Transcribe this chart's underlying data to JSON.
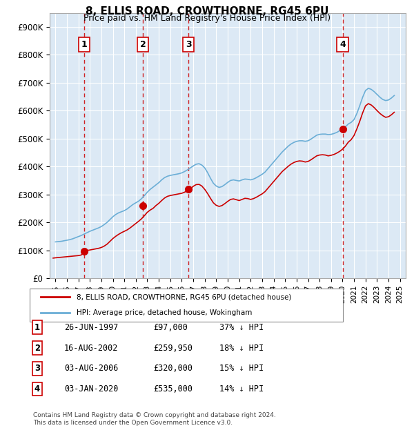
{
  "title": "8, ELLIS ROAD, CROWTHORNE, RG45 6PU",
  "subtitle": "Price paid vs. HM Land Registry's House Price Index (HPI)",
  "background_color": "#dce9f5",
  "plot_bg_color": "#dce9f5",
  "ylabel_color": "#000000",
  "grid_color": "#ffffff",
  "ylim": [
    0,
    950000
  ],
  "yticks": [
    0,
    100000,
    200000,
    300000,
    400000,
    500000,
    600000,
    700000,
    800000,
    900000
  ],
  "ytick_labels": [
    "£0",
    "£100K",
    "£200K",
    "£300K",
    "£400K",
    "£500K",
    "£600K",
    "£700K",
    "£800K",
    "£900K"
  ],
  "xlim_start": 1994.5,
  "xlim_end": 2025.5,
  "sale_dates": [
    1997.49,
    2002.62,
    2006.59,
    2020.01
  ],
  "sale_prices": [
    97000,
    259950,
    320000,
    535000
  ],
  "sale_labels": [
    "1",
    "2",
    "3",
    "4"
  ],
  "hpi_line_color": "#6baed6",
  "price_line_color": "#cc0000",
  "sale_marker_color": "#cc0000",
  "dashed_line_color": "#cc0000",
  "legend_entries": [
    "8, ELLIS ROAD, CROWTHORNE, RG45 6PU (detached house)",
    "HPI: Average price, detached house, Wokingham"
  ],
  "table_rows": [
    [
      "1",
      "26-JUN-1997",
      "£97,000",
      "37% ↓ HPI"
    ],
    [
      "2",
      "16-AUG-2002",
      "£259,950",
      "18% ↓ HPI"
    ],
    [
      "3",
      "03-AUG-2006",
      "£320,000",
      "15% ↓ HPI"
    ],
    [
      "4",
      "03-JAN-2020",
      "£535,000",
      "14% ↓ HPI"
    ]
  ],
  "footnote": "Contains HM Land Registry data © Crown copyright and database right 2024.\nThis data is licensed under the Open Government Licence v3.0.",
  "hpi_years": [
    1995.0,
    1995.25,
    1995.5,
    1995.75,
    1996.0,
    1996.25,
    1996.5,
    1996.75,
    1997.0,
    1997.25,
    1997.5,
    1997.75,
    1998.0,
    1998.25,
    1998.5,
    1998.75,
    1999.0,
    1999.25,
    1999.5,
    1999.75,
    2000.0,
    2000.25,
    2000.5,
    2000.75,
    2001.0,
    2001.25,
    2001.5,
    2001.75,
    2002.0,
    2002.25,
    2002.5,
    2002.75,
    2003.0,
    2003.25,
    2003.5,
    2003.75,
    2004.0,
    2004.25,
    2004.5,
    2004.75,
    2005.0,
    2005.25,
    2005.5,
    2005.75,
    2006.0,
    2006.25,
    2006.5,
    2006.75,
    2007.0,
    2007.25,
    2007.5,
    2007.75,
    2008.0,
    2008.25,
    2008.5,
    2008.75,
    2009.0,
    2009.25,
    2009.5,
    2009.75,
    2010.0,
    2010.25,
    2010.5,
    2010.75,
    2011.0,
    2011.25,
    2011.5,
    2011.75,
    2012.0,
    2012.25,
    2012.5,
    2012.75,
    2013.0,
    2013.25,
    2013.5,
    2013.75,
    2014.0,
    2014.25,
    2014.5,
    2014.75,
    2015.0,
    2015.25,
    2015.5,
    2015.75,
    2016.0,
    2016.25,
    2016.5,
    2016.75,
    2017.0,
    2017.25,
    2017.5,
    2017.75,
    2018.0,
    2018.25,
    2018.5,
    2018.75,
    2019.0,
    2019.25,
    2019.5,
    2019.75,
    2020.0,
    2020.25,
    2020.5,
    2020.75,
    2021.0,
    2021.25,
    2021.5,
    2021.75,
    2022.0,
    2022.25,
    2022.5,
    2022.75,
    2023.0,
    2023.25,
    2023.5,
    2023.75,
    2024.0,
    2024.25,
    2024.5
  ],
  "hpi_values": [
    130000,
    131000,
    132000,
    134000,
    136000,
    138000,
    141000,
    145000,
    149000,
    153000,
    158000,
    163000,
    168000,
    172000,
    176000,
    180000,
    185000,
    192000,
    200000,
    210000,
    220000,
    228000,
    234000,
    238000,
    242000,
    248000,
    256000,
    264000,
    270000,
    276000,
    285000,
    296000,
    308000,
    318000,
    326000,
    334000,
    342000,
    352000,
    360000,
    365000,
    368000,
    370000,
    372000,
    374000,
    377000,
    382000,
    388000,
    395000,
    402000,
    408000,
    410000,
    405000,
    395000,
    378000,
    358000,
    340000,
    330000,
    325000,
    328000,
    335000,
    343000,
    350000,
    352000,
    350000,
    348000,
    352000,
    355000,
    354000,
    352000,
    355000,
    360000,
    366000,
    372000,
    380000,
    392000,
    404000,
    416000,
    428000,
    440000,
    452000,
    462000,
    472000,
    480000,
    486000,
    490000,
    492000,
    492000,
    490000,
    492000,
    498000,
    505000,
    512000,
    515000,
    516000,
    516000,
    514000,
    515000,
    518000,
    522000,
    528000,
    534000,
    542000,
    552000,
    558000,
    568000,
    590000,
    618000,
    648000,
    672000,
    680000,
    676000,
    668000,
    658000,
    648000,
    640000,
    636000,
    638000,
    645000,
    654000
  ],
  "price_years": [
    1994.8,
    1995.0,
    1995.25,
    1995.5,
    1995.75,
    1996.0,
    1996.25,
    1996.5,
    1996.75,
    1997.0,
    1997.25,
    1997.5,
    1997.75,
    1998.0,
    1998.25,
    1998.5,
    1998.75,
    1999.0,
    1999.25,
    1999.5,
    1999.75,
    2000.0,
    2000.25,
    2000.5,
    2000.75,
    2001.0,
    2001.25,
    2001.5,
    2001.75,
    2002.0,
    2002.25,
    2002.5,
    2002.75,
    2003.0,
    2003.25,
    2003.5,
    2003.75,
    2004.0,
    2004.25,
    2004.5,
    2004.75,
    2005.0,
    2005.25,
    2005.5,
    2005.75,
    2006.0,
    2006.25,
    2006.5,
    2006.75,
    2007.0,
    2007.25,
    2007.5,
    2007.75,
    2008.0,
    2008.25,
    2008.5,
    2008.75,
    2009.0,
    2009.25,
    2009.5,
    2009.75,
    2010.0,
    2010.25,
    2010.5,
    2010.75,
    2011.0,
    2011.25,
    2011.5,
    2011.75,
    2012.0,
    2012.25,
    2012.5,
    2012.75,
    2013.0,
    2013.25,
    2013.5,
    2013.75,
    2014.0,
    2014.25,
    2014.5,
    2014.75,
    2015.0,
    2015.25,
    2015.5,
    2015.75,
    2016.0,
    2016.25,
    2016.5,
    2016.75,
    2017.0,
    2017.25,
    2017.5,
    2017.75,
    2018.0,
    2018.25,
    2018.5,
    2018.75,
    2019.0,
    2019.25,
    2019.5,
    2019.75,
    2020.0,
    2020.25,
    2020.5,
    2020.75,
    2021.0,
    2021.25,
    2021.5,
    2021.75,
    2022.0,
    2022.25,
    2022.5,
    2022.75,
    2023.0,
    2023.25,
    2023.5,
    2023.75,
    2024.0,
    2024.25,
    2024.5
  ],
  "price_values": [
    72000,
    73000,
    74000,
    75000,
    76000,
    77000,
    78000,
    79000,
    80000,
    81000,
    83000,
    97000,
    99000,
    101000,
    103000,
    105000,
    107000,
    110000,
    115000,
    122000,
    132000,
    142000,
    150000,
    157000,
    163000,
    168000,
    173000,
    180000,
    188000,
    196000,
    204000,
    213000,
    224000,
    236000,
    244000,
    250000,
    259950,
    268000,
    278000,
    287000,
    293000,
    296000,
    298000,
    300000,
    302000,
    304000,
    308000,
    314000,
    320000,
    329000,
    335000,
    336000,
    330000,
    318000,
    303000,
    286000,
    270000,
    261000,
    257000,
    260000,
    267000,
    275000,
    282000,
    284000,
    281000,
    278000,
    282000,
    286000,
    285000,
    282000,
    285000,
    290000,
    296000,
    302000,
    310000,
    322000,
    334000,
    346000,
    358000,
    370000,
    382000,
    391000,
    400000,
    408000,
    414000,
    418000,
    420000,
    419000,
    416000,
    418000,
    424000,
    431000,
    438000,
    441000,
    442000,
    441000,
    438000,
    440000,
    443000,
    448000,
    454000,
    462000,
    473000,
    487000,
    496000,
    511000,
    535000,
    562000,
    592000,
    617000,
    625000,
    620000,
    611000,
    600000,
    590000,
    582000,
    576000,
    578000,
    585000,
    594000
  ]
}
